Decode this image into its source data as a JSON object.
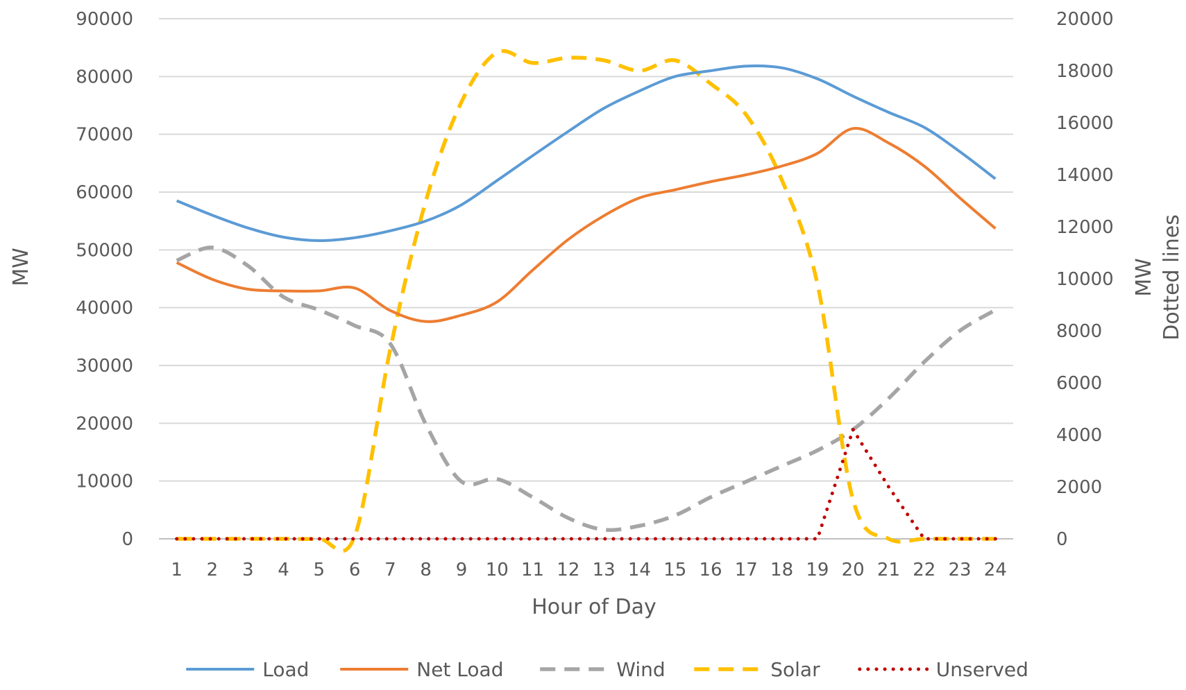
{
  "chart_data": {
    "type": "line",
    "title": "",
    "xlabel": "Hour of Day",
    "ylabel": "MW",
    "y2label": "MW",
    "y2label_note": "Dotted lines",
    "x": [
      1,
      2,
      3,
      4,
      5,
      6,
      7,
      8,
      9,
      10,
      11,
      12,
      13,
      14,
      15,
      16,
      17,
      18,
      19,
      20,
      21,
      22,
      23,
      24
    ],
    "x_tick_labels": [
      "1",
      "2",
      "3",
      "4",
      "5",
      "6",
      "7",
      "8",
      "9",
      "10",
      "11",
      "12",
      "13",
      "14",
      "15",
      "16",
      "17",
      "18",
      "19",
      "20",
      "21",
      "22",
      "23",
      "24"
    ],
    "ylim": [
      0,
      90000
    ],
    "y_tick_labels": [
      "0",
      "10000",
      "20000",
      "30000",
      "40000",
      "50000",
      "60000",
      "70000",
      "80000",
      "90000"
    ],
    "y2lim": [
      0,
      20000
    ],
    "y2_tick_labels": [
      "0",
      "2000",
      "4000",
      "6000",
      "8000",
      "10000",
      "12000",
      "14000",
      "16000",
      "18000",
      "20000"
    ],
    "grid": true,
    "legend_position": "bottom",
    "series": [
      {
        "name": "Load",
        "axis": "left",
        "style": "solid",
        "color": "#5B9BD5",
        "values": [
          58500,
          56000,
          53800,
          52200,
          51600,
          52100,
          53300,
          55000,
          57800,
          62000,
          66300,
          70500,
          74500,
          77500,
          80000,
          81000,
          81800,
          81500,
          79600,
          76600,
          73800,
          71200,
          67000,
          62300
        ]
      },
      {
        "name": "Net Load",
        "axis": "left",
        "style": "solid",
        "color": "#ED7D31",
        "values": [
          47800,
          44900,
          43200,
          42900,
          42900,
          43400,
          39500,
          37600,
          38700,
          41000,
          46500,
          51800,
          55900,
          59000,
          60400,
          61800,
          63000,
          64500,
          66700,
          71000,
          68500,
          64500,
          59000,
          53700
        ]
      },
      {
        "name": "Wind",
        "axis": "right",
        "style": "dashed",
        "color": "#A5A5A5",
        "values": [
          10700,
          11200,
          10500,
          9300,
          8800,
          8200,
          7500,
          4400,
          2200,
          2300,
          1600,
          800,
          350,
          500,
          900,
          1600,
          2200,
          2800,
          3400,
          4200,
          5400,
          6800,
          8000,
          8800
        ]
      },
      {
        "name": "Solar",
        "axis": "right",
        "style": "dashed",
        "color": "#FFC000",
        "values": [
          0,
          0,
          0,
          0,
          0,
          100,
          7300,
          13000,
          16800,
          18700,
          18300,
          18500,
          18400,
          18000,
          18400,
          17500,
          16300,
          13800,
          9800,
          1500,
          0,
          0,
          0,
          0
        ]
      },
      {
        "name": "Unserved",
        "axis": "right",
        "style": "dotted",
        "color": "#C00000",
        "values": [
          0,
          0,
          0,
          0,
          0,
          0,
          0,
          0,
          0,
          0,
          0,
          0,
          0,
          0,
          0,
          0,
          0,
          0,
          0,
          4200,
          2000,
          0,
          0,
          0
        ]
      }
    ]
  }
}
